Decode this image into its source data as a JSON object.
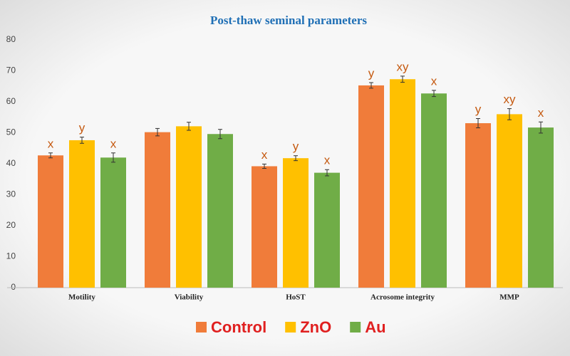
{
  "chart_data": {
    "type": "bar",
    "title": "Post-thaw seminal parameters",
    "categories": [
      "Motility",
      "Viability",
      "HoST",
      "Acrosome integrity",
      "MMP"
    ],
    "series": [
      {
        "name": "Control",
        "color": "#f07c3a",
        "values": [
          42.7,
          50.2,
          39.2,
          65.3,
          53.1
        ],
        "errors": [
          0.8,
          1.2,
          0.7,
          0.9,
          1.5
        ],
        "letters": [
          "x",
          null,
          "x",
          "y",
          "y"
        ]
      },
      {
        "name": "ZnO",
        "color": "#ffc000",
        "values": [
          47.6,
          52.1,
          41.8,
          67.3,
          56.0
        ],
        "errors": [
          1.0,
          1.3,
          0.8,
          1.0,
          1.8
        ],
        "letters": [
          "y",
          null,
          "y",
          "xy",
          "xy"
        ]
      },
      {
        "name": "Au",
        "color": "#70ad47",
        "values": [
          42.0,
          49.6,
          37.1,
          62.7,
          51.7
        ],
        "errors": [
          1.5,
          1.5,
          1.0,
          1.0,
          1.8
        ],
        "letters": [
          "x",
          null,
          "x",
          "x",
          "x"
        ]
      }
    ],
    "ylim": [
      0,
      80
    ],
    "yticks": [
      0,
      10,
      20,
      30,
      40,
      50,
      60,
      70,
      80
    ],
    "grid": false,
    "legend": "bottom"
  }
}
